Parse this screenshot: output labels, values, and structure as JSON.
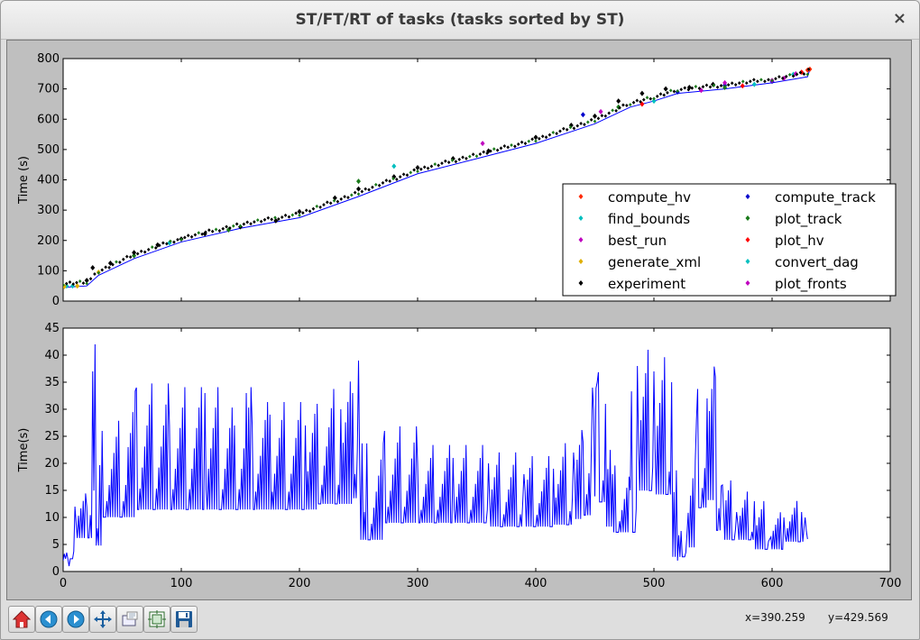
{
  "window": {
    "title": "ST/FT/RT of tasks (tasks sorted by ST)",
    "close_glyph": "×"
  },
  "chart_data": [
    {
      "type": "scatter",
      "title": "",
      "xlabel": "",
      "ylabel": "Time (s)",
      "xlim": [
        0,
        700
      ],
      "ylim": [
        0,
        800
      ],
      "x_ticks": [
        "0",
        "100",
        "200",
        "300",
        "400",
        "500",
        "600",
        "700"
      ],
      "y_ticks": [
        "0",
        "100",
        "200",
        "300",
        "400",
        "500",
        "600",
        "700",
        "800"
      ],
      "show_x_tick_labels": false,
      "legend_position": "lower-right",
      "series": [
        {
          "name": "compute_hv",
          "color": "#ff2a00",
          "marker": "diamond",
          "points": [
            [
              630,
              762
            ],
            [
              632,
              765
            ]
          ]
        },
        {
          "name": "compute_track",
          "color": "#0000cc",
          "marker": "diamond",
          "points": [
            [
              440,
              615
            ],
            [
              520,
              690
            ],
            [
              560,
              712
            ],
            [
              600,
              725
            ]
          ]
        },
        {
          "name": "find_bounds",
          "color": "#00bfbf",
          "marker": "diamond",
          "points": [
            [
              3,
              50
            ],
            [
              8,
              50
            ],
            [
              90,
              192
            ],
            [
              280,
              445
            ]
          ]
        },
        {
          "name": "plot_track",
          "color": "#1a7a1a",
          "marker": "diamond",
          "points": [
            [
              60,
              150
            ],
            [
              140,
              235
            ],
            [
              250,
              395
            ],
            [
              470,
              640
            ],
            [
              560,
              705
            ]
          ]
        },
        {
          "name": "best_run",
          "color": "#bf00bf",
          "marker": "diamond",
          "points": [
            [
              355,
              520
            ],
            [
              455,
              625
            ],
            [
              540,
              695
            ],
            [
              610,
              735
            ]
          ]
        },
        {
          "name": "plot_hv",
          "color": "#ff0000",
          "marker": "diamond",
          "points": [
            [
              490,
              650
            ],
            [
              575,
              710
            ],
            [
              625,
              755
            ]
          ]
        },
        {
          "name": "generate_xml",
          "color": "#e0b000",
          "marker": "diamond",
          "points": [
            [
              1,
              48
            ],
            [
              12,
              50
            ],
            [
              30,
              95
            ]
          ]
        },
        {
          "name": "convert_dag",
          "color": "#00c0c0",
          "marker": "diamond",
          "points": [
            [
              500,
              660
            ],
            [
              585,
              715
            ],
            [
              618,
              748
            ]
          ]
        },
        {
          "name": "experiment",
          "color": "#000000",
          "marker": "diamond",
          "points": [
            [
              20,
              68
            ],
            [
              25,
              110
            ],
            [
              40,
              125
            ],
            [
              60,
              160
            ],
            [
              80,
              185
            ],
            [
              100,
              205
            ],
            [
              120,
              222
            ],
            [
              150,
              245
            ],
            [
              180,
              265
            ],
            [
              200,
              295
            ],
            [
              230,
              340
            ],
            [
              250,
              370
            ],
            [
              280,
              410
            ],
            [
              300,
              440
            ],
            [
              330,
              470
            ],
            [
              360,
              495
            ],
            [
              400,
              540
            ],
            [
              430,
              580
            ],
            [
              450,
              610
            ],
            [
              470,
              660
            ],
            [
              490,
              685
            ],
            [
              510,
              700
            ],
            [
              530,
              705
            ],
            [
              550,
              715
            ]
          ]
        },
        {
          "name": "plot_fronts",
          "color": "#c000c0",
          "marker": "diamond",
          "points": [
            [
              560,
              720
            ],
            [
              600,
              728
            ],
            [
              620,
              750
            ]
          ]
        }
      ],
      "st_line": {
        "color": "#0000ff",
        "points": [
          [
            0,
            45
          ],
          [
            20,
            50
          ],
          [
            30,
            85
          ],
          [
            60,
            140
          ],
          [
            100,
            195
          ],
          [
            150,
            240
          ],
          [
            200,
            275
          ],
          [
            250,
            345
          ],
          [
            300,
            420
          ],
          [
            350,
            470
          ],
          [
            400,
            520
          ],
          [
            450,
            585
          ],
          [
            480,
            640
          ],
          [
            500,
            660
          ],
          [
            520,
            685
          ],
          [
            560,
            700
          ],
          [
            600,
            720
          ],
          [
            630,
            740
          ],
          [
            632,
            765
          ]
        ]
      }
    },
    {
      "type": "line",
      "title": "",
      "xlabel": "",
      "ylabel": "Time(s)",
      "xlim": [
        0,
        700
      ],
      "ylim": [
        0,
        45
      ],
      "x_ticks": [
        "0",
        "100",
        "200",
        "300",
        "400",
        "500",
        "600",
        "700"
      ],
      "y_ticks": [
        "0",
        "5",
        "10",
        "15",
        "20",
        "25",
        "30",
        "35",
        "40",
        "45"
      ],
      "series": [
        {
          "name": "",
          "color": "#0000ff",
          "peaks": [
            [
              0,
              2
            ],
            [
              5,
              1
            ],
            [
              10,
              12
            ],
            [
              20,
              12
            ],
            [
              25,
              37
            ],
            [
              27,
              42
            ],
            [
              29,
              8
            ],
            [
              33,
              26
            ],
            [
              55,
              23
            ],
            [
              62,
              34
            ],
            [
              90,
              27
            ],
            [
              120,
              33
            ],
            [
              145,
              27
            ],
            [
              155,
              33
            ],
            [
              160,
              27
            ],
            [
              175,
              29
            ],
            [
              205,
              27
            ],
            [
              215,
              31
            ],
            [
              235,
              30
            ],
            [
              245,
              33
            ],
            [
              250,
              39
            ],
            [
              255,
              11
            ],
            [
              272,
              26
            ],
            [
              300,
              20
            ],
            [
              330,
              21
            ],
            [
              360,
              20
            ],
            [
              390,
              18
            ],
            [
              415,
              19
            ],
            [
              432,
              22
            ],
            [
              440,
              24
            ],
            [
              448,
              34
            ],
            [
              452,
              35
            ],
            [
              459,
              31
            ],
            [
              465,
              18
            ],
            [
              480,
              15
            ],
            [
              486,
              38
            ],
            [
              500,
              37
            ],
            [
              515,
              35
            ],
            [
              520,
              2
            ],
            [
              528,
              7
            ],
            [
              536,
              28
            ],
            [
              545,
              32
            ],
            [
              552,
              36
            ],
            [
              558,
              16
            ],
            [
              570,
              11
            ],
            [
              585,
              13
            ],
            [
              598,
              6
            ],
            [
              610,
              10
            ],
            [
              625,
              11
            ],
            [
              628,
              10
            ],
            [
              630,
              6
            ]
          ]
        }
      ]
    }
  ],
  "toolbar": {
    "buttons": [
      {
        "name": "home-button",
        "icon": "home-icon"
      },
      {
        "name": "back-button",
        "icon": "arrow-left-icon"
      },
      {
        "name": "forward-button",
        "icon": "arrow-right-icon"
      },
      {
        "name": "pan-button",
        "icon": "move-icon"
      },
      {
        "name": "zoom-button",
        "icon": "zoom-rect-icon"
      },
      {
        "name": "subplots-button",
        "icon": "subplots-icon"
      },
      {
        "name": "save-button",
        "icon": "floppy-icon"
      }
    ],
    "x_readout": "x=390.259",
    "y_readout": "y=429.569"
  }
}
